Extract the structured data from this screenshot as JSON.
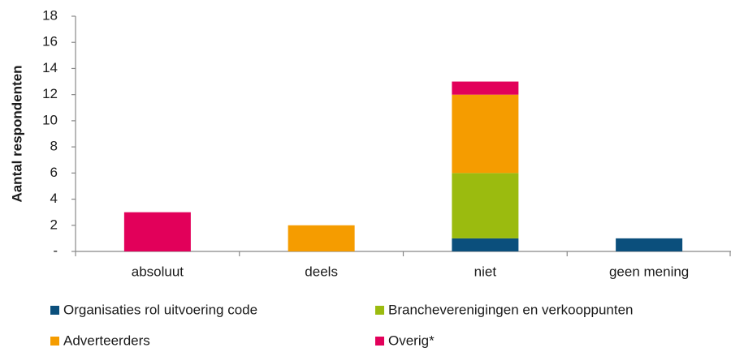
{
  "chart_data": {
    "type": "stacked_bar",
    "y_label": "Aantal respondenten",
    "categories": [
      "absoluut",
      "deels",
      "niet",
      "geen mening"
    ],
    "series": [
      {
        "name": "Organisaties rol uitvoering code",
        "color": "#0b4f7c",
        "values": [
          0,
          0,
          1,
          1
        ]
      },
      {
        "name": "Brancheverenigingen en verkooppunten",
        "color": "#9bbb0f",
        "values": [
          0,
          0,
          5,
          0
        ]
      },
      {
        "name": "Adverteerders",
        "color": "#f59c00",
        "values": [
          0,
          2,
          6,
          0
        ]
      },
      {
        "name": "Overig*",
        "color": "#e2005a",
        "values": [
          3,
          0,
          1,
          0
        ]
      }
    ],
    "ylim": [
      0,
      18
    ],
    "yticks": [
      {
        "value": 0,
        "label": "-"
      },
      2,
      4,
      6,
      8,
      10,
      12,
      14,
      16,
      18
    ],
    "grid": false
  }
}
